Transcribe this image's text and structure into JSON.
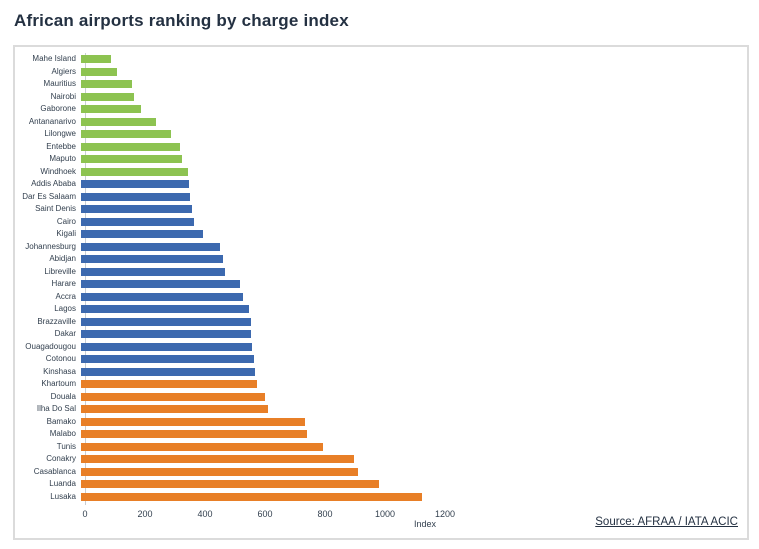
{
  "page": {
    "title": "African airports ranking by charge index"
  },
  "source": {
    "label": "Source: AFRAA / IATA ACIC"
  },
  "chart_data": {
    "type": "bar",
    "orientation": "horizontal",
    "title": "African airports ranking by charge index",
    "xlabel": "Index",
    "ylabel": "",
    "xlim": [
      0,
      1200
    ],
    "xticks": [
      0,
      200,
      400,
      600,
      800,
      1000,
      1200
    ],
    "grid": false,
    "legend_position": "none",
    "palette": {
      "low_group_green": "#8dc351",
      "mid_group_blue": "#3c69af",
      "high_group_orange": "#e87f27"
    },
    "bars": [
      {
        "label": "Mahe Island",
        "value": 100,
        "group": "low_group_green"
      },
      {
        "label": "Algiers",
        "value": 120,
        "group": "low_group_green"
      },
      {
        "label": "Mauritius",
        "value": 170,
        "group": "low_group_green"
      },
      {
        "label": "Nairobi",
        "value": 175,
        "group": "low_group_green"
      },
      {
        "label": "Gaborone",
        "value": 200,
        "group": "low_group_green"
      },
      {
        "label": "Antananarivo",
        "value": 250,
        "group": "low_group_green"
      },
      {
        "label": "Lilongwe",
        "value": 300,
        "group": "low_group_green"
      },
      {
        "label": "Entebbe",
        "value": 330,
        "group": "low_group_green"
      },
      {
        "label": "Maputo",
        "value": 335,
        "group": "low_group_green"
      },
      {
        "label": "Windhoek",
        "value": 358,
        "group": "low_group_green"
      },
      {
        "label": "Addis Ababa",
        "value": 360,
        "group": "mid_group_blue"
      },
      {
        "label": "Dar Es Salaam",
        "value": 362,
        "group": "mid_group_blue"
      },
      {
        "label": "Saint Denis",
        "value": 370,
        "group": "mid_group_blue"
      },
      {
        "label": "Cairo",
        "value": 375,
        "group": "mid_group_blue"
      },
      {
        "label": "Kigali",
        "value": 405,
        "group": "mid_group_blue"
      },
      {
        "label": "Johannesburg",
        "value": 463,
        "group": "mid_group_blue"
      },
      {
        "label": "Abidjan",
        "value": 472,
        "group": "mid_group_blue"
      },
      {
        "label": "Libreville",
        "value": 480,
        "group": "mid_group_blue"
      },
      {
        "label": "Harare",
        "value": 530,
        "group": "mid_group_blue"
      },
      {
        "label": "Accra",
        "value": 540,
        "group": "mid_group_blue"
      },
      {
        "label": "Lagos",
        "value": 560,
        "group": "mid_group_blue"
      },
      {
        "label": "Brazzaville",
        "value": 565,
        "group": "mid_group_blue"
      },
      {
        "label": "Dakar",
        "value": 568,
        "group": "mid_group_blue"
      },
      {
        "label": "Ouagadougou",
        "value": 570,
        "group": "mid_group_blue"
      },
      {
        "label": "Cotonou",
        "value": 575,
        "group": "mid_group_blue"
      },
      {
        "label": "Kinshasa",
        "value": 580,
        "group": "mid_group_blue"
      },
      {
        "label": "Khartoum",
        "value": 585,
        "group": "high_group_orange"
      },
      {
        "label": "Douala",
        "value": 612,
        "group": "high_group_orange"
      },
      {
        "label": "Ilha Do Sal",
        "value": 623,
        "group": "high_group_orange"
      },
      {
        "label": "Bamako",
        "value": 745,
        "group": "high_group_orange"
      },
      {
        "label": "Malabo",
        "value": 752,
        "group": "high_group_orange"
      },
      {
        "label": "Tunis",
        "value": 806,
        "group": "high_group_orange"
      },
      {
        "label": "Conakry",
        "value": 910,
        "group": "high_group_orange"
      },
      {
        "label": "Casablanca",
        "value": 922,
        "group": "high_group_orange"
      },
      {
        "label": "Luanda",
        "value": 992,
        "group": "high_group_orange"
      },
      {
        "label": "Lusaka",
        "value": 1137,
        "group": "high_group_orange"
      }
    ]
  }
}
